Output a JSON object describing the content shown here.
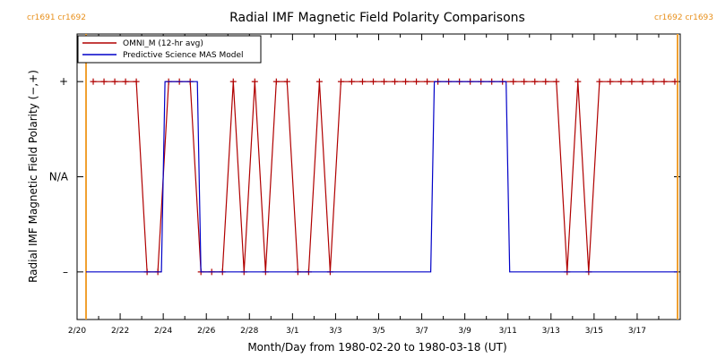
{
  "chart_data": {
    "type": "line",
    "title": "Radial IMF Magnetic Field Polarity Comparisons",
    "xlabel": "Month/Day from 1980-02-20 to 1980-03-18 (UT)",
    "ylabel": "Radial IMF Magnetic Field Polarity (−,+)",
    "x_start": "1980-02-20",
    "xlim": [
      "1980-02-20",
      "1980-03-19"
    ],
    "ylim": [
      -1.5,
      1.5
    ],
    "x_ticks": [
      {
        "date": "1980-02-20",
        "label": "2/20"
      },
      {
        "date": "1980-02-22",
        "label": "2/22"
      },
      {
        "date": "1980-02-24",
        "label": "2/24"
      },
      {
        "date": "1980-02-26",
        "label": "2/26"
      },
      {
        "date": "1980-02-28",
        "label": "2/28"
      },
      {
        "date": "1980-03-01",
        "label": "3/1"
      },
      {
        "date": "1980-03-03",
        "label": "3/3"
      },
      {
        "date": "1980-03-05",
        "label": "3/5"
      },
      {
        "date": "1980-03-07",
        "label": "3/7"
      },
      {
        "date": "1980-03-09",
        "label": "3/9"
      },
      {
        "date": "1980-03-11",
        "label": "3/11"
      },
      {
        "date": "1980-03-13",
        "label": "3/13"
      },
      {
        "date": "1980-03-15",
        "label": "3/15"
      },
      {
        "date": "1980-03-17",
        "label": "3/17"
      }
    ],
    "y_ticks": [
      {
        "value": 1,
        "label": "+"
      },
      {
        "value": 0,
        "label": "N/A"
      },
      {
        "value": -1,
        "label": "–"
      }
    ],
    "carrington_markers": [
      {
        "date": "1980-02-20 10:00",
        "label": "cr1691 cr1692",
        "side": "left"
      },
      {
        "date": "1980-03-18 21:00",
        "label": "cr1692 cr1693",
        "side": "right"
      }
    ],
    "legend": {
      "placement": "top-left"
    },
    "series": [
      {
        "name": "OMNI_M (12-hr avg)",
        "color": "#b00000",
        "marker": "plus",
        "x": [
          "1980-02-20 18:00",
          "1980-02-21 06:00",
          "1980-02-21 18:00",
          "1980-02-22 06:00",
          "1980-02-22 18:00",
          "1980-02-23 06:00",
          "1980-02-23 18:00",
          "1980-02-24 06:00",
          "1980-02-24 18:00",
          "1980-02-25 06:00",
          "1980-02-25 18:00",
          "1980-02-26 06:00",
          "1980-02-26 18:00",
          "1980-02-27 06:00",
          "1980-02-27 18:00",
          "1980-02-28 06:00",
          "1980-02-28 18:00",
          "1980-02-29 06:00",
          "1980-02-29 18:00",
          "1980-03-01 06:00",
          "1980-03-01 18:00",
          "1980-03-02 06:00",
          "1980-03-02 18:00",
          "1980-03-03 06:00",
          "1980-03-03 18:00",
          "1980-03-04 06:00",
          "1980-03-04 18:00",
          "1980-03-05 06:00",
          "1980-03-05 18:00",
          "1980-03-06 06:00",
          "1980-03-06 18:00",
          "1980-03-07 06:00",
          "1980-03-07 18:00",
          "1980-03-08 06:00",
          "1980-03-08 18:00",
          "1980-03-09 06:00",
          "1980-03-09 18:00",
          "1980-03-10 06:00",
          "1980-03-10 18:00",
          "1980-03-11 06:00",
          "1980-03-11 18:00",
          "1980-03-12 06:00",
          "1980-03-12 18:00",
          "1980-03-13 06:00",
          "1980-03-13 18:00",
          "1980-03-14 06:00",
          "1980-03-14 18:00",
          "1980-03-15 06:00",
          "1980-03-15 18:00",
          "1980-03-16 06:00",
          "1980-03-16 18:00",
          "1980-03-17 06:00",
          "1980-03-17 18:00",
          "1980-03-18 06:00",
          "1980-03-18 18:00"
        ],
        "y": [
          1,
          1,
          1,
          1,
          1,
          -1,
          -1,
          1,
          1,
          1,
          -1,
          -1,
          -1,
          1,
          -1,
          1,
          -1,
          1,
          1,
          -1,
          -1,
          1,
          -1,
          1,
          1,
          1,
          1,
          1,
          1,
          1,
          1,
          1,
          1,
          1,
          1,
          1,
          1,
          1,
          1,
          1,
          1,
          1,
          1,
          1,
          -1,
          1,
          -1,
          1,
          1,
          1,
          1,
          1,
          1,
          1,
          1
        ]
      },
      {
        "name": "Predictive Science MAS Model",
        "color": "#0000c8",
        "marker": "none",
        "x": [
          "1980-02-20 10:00",
          "1980-02-23 22:00",
          "1980-02-24 02:00",
          "1980-02-25 14:00",
          "1980-02-25 18:00",
          "1980-03-07 10:00",
          "1980-03-07 14:00",
          "1980-03-10 22:00",
          "1980-03-11 02:00",
          "1980-03-18 21:00"
        ],
        "y": [
          -1,
          -1,
          1,
          1,
          -1,
          -1,
          1,
          1,
          -1,
          -1
        ]
      }
    ]
  }
}
